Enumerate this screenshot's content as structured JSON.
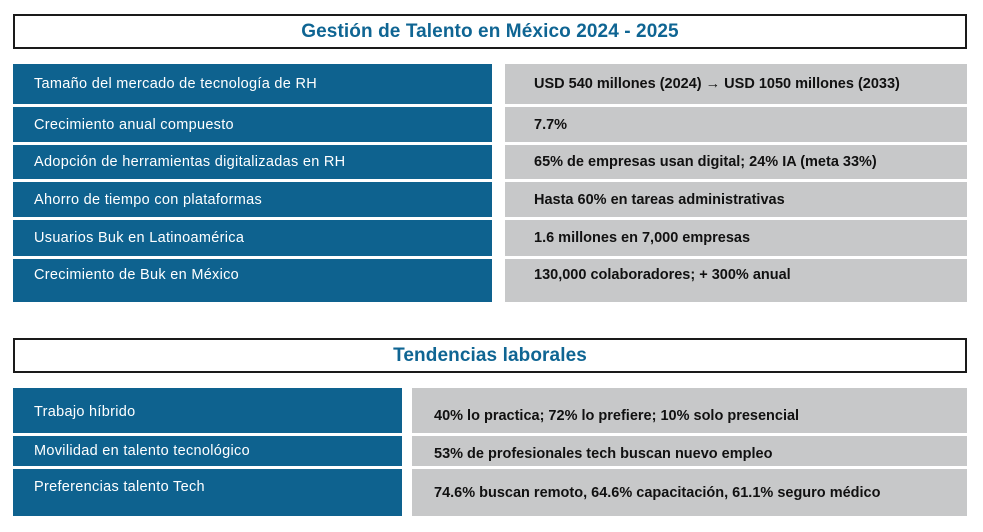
{
  "section1": {
    "title": "Gestión de Talento en México 2024 - 2025",
    "rows": [
      {
        "label": "Tamaño del mercado de tecnología de RH",
        "value": "USD 540 millones (2024) → USD 1050 millones (2033)"
      },
      {
        "label": "Crecimiento anual compuesto",
        "value": "7.7%"
      },
      {
        "label": "Adopción de herramientas digitalizadas en RH",
        "value": "65% de empresas usan digital; 24% IA (meta 33%)"
      },
      {
        "label": "Ahorro de tiempo con plataformas",
        "value": "Hasta 60% en tareas administrativas"
      },
      {
        "label": "Usuarios Buk en Latinoamérica",
        "value": "1.6 millones en 7,000 empresas"
      },
      {
        "label": "Crecimiento de Buk en México",
        "value": "130,000 colaboradores; + 300% anual"
      }
    ]
  },
  "section2": {
    "title": "Tendencias laborales",
    "rows": [
      {
        "label": "Trabajo híbrido",
        "value": "40% lo practica; 72% lo prefiere; 10% solo presencial"
      },
      {
        "label": "Movilidad en talento tecnológico",
        "value": "53% de profesionales tech buscan nuevo empleo"
      },
      {
        "label": "Preferencias talento Tech",
        "value": "74.6% buscan remoto, 64.6% capacitación, 61.1% seguro médico"
      }
    ]
  }
}
